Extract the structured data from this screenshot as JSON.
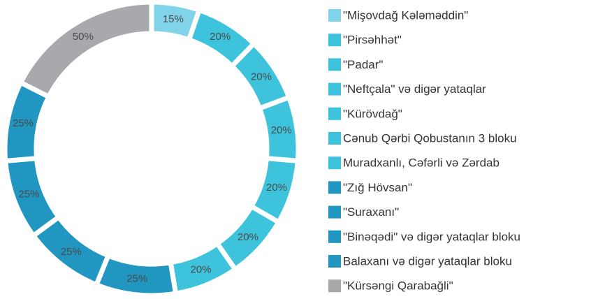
{
  "chart_data": {
    "type": "pie",
    "categories": [
      "\"Mişovdağ Kələməddin\"",
      "\"Pirsəhhət\"",
      "\"Padar\"",
      "\"Neftçala\" və digər yataqlar",
      "\"Kürövdağ\"",
      "Cənub Qərbi Qobustanın 3 bloku",
      "Muradxanlı, Cəfərli və Zərdab",
      "\"Zığ Hövsan\"",
      "\"Suraxanı\"",
      "\"Binəqədi\" və digər yataqlar bloku",
      "Balaxanı və digər yataqlar bloku",
      "\"Kürsəngi Qarabağli\""
    ],
    "values": [
      15,
      20,
      20,
      20,
      20,
      20,
      20,
      25,
      25,
      25,
      25,
      50
    ],
    "value_labels": [
      "15%",
      "20%",
      "20%",
      "20%",
      "20%",
      "20%",
      "20%",
      "25%",
      "25%",
      "25%",
      "25%",
      "50%"
    ],
    "colors": [
      "#80d3e8",
      "#3ec3dc",
      "#3ec3dc",
      "#3ec3dc",
      "#3ec3dc",
      "#3ec3dc",
      "#3ec3dc",
      "#2096c0",
      "#2096c0",
      "#2096c0",
      "#2096c0",
      "#a7a9ac"
    ],
    "donut": true,
    "legend": "right"
  }
}
